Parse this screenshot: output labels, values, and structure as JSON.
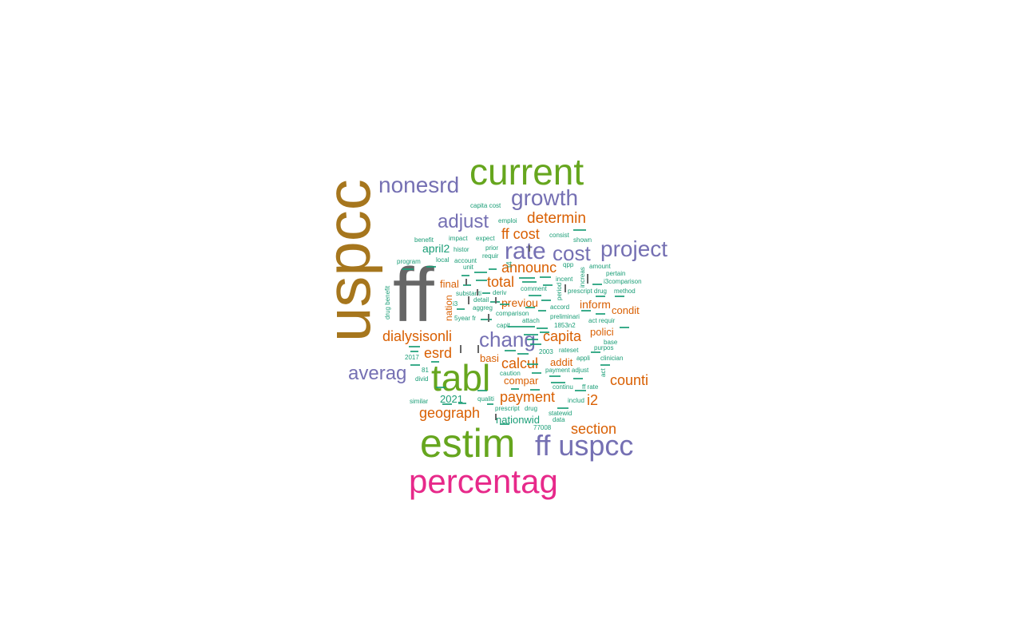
{
  "palette": {
    "brown": "#a6761d",
    "gray": "#666666",
    "green": "#66a61e",
    "purple": "#7570b3",
    "magenta": "#e7298a",
    "orange": "#d95f02",
    "teal": "#1b9e77"
  },
  "words": [
    {
      "text": "uspcc",
      "color": "brown"
    },
    {
      "text": "ff",
      "color": "gray"
    },
    {
      "text": "current",
      "color": "green"
    },
    {
      "text": "tabl",
      "color": "green"
    },
    {
      "text": "estim",
      "color": "green"
    },
    {
      "text": "percentag",
      "color": "magenta"
    },
    {
      "text": "ff uspcc",
      "color": "purple"
    },
    {
      "text": "nonesrd",
      "color": "purple"
    },
    {
      "text": "growth",
      "color": "purple"
    },
    {
      "text": "project",
      "color": "purple"
    },
    {
      "text": "rate",
      "color": "purple"
    },
    {
      "text": "cost",
      "color": "purple"
    },
    {
      "text": "adjust",
      "color": "purple"
    },
    {
      "text": "chang",
      "color": "purple"
    },
    {
      "text": "averag",
      "color": "purple"
    },
    {
      "text": "determin",
      "color": "orange"
    },
    {
      "text": "ff cost",
      "color": "orange"
    },
    {
      "text": "announc",
      "color": "orange"
    },
    {
      "text": "total",
      "color": "orange"
    },
    {
      "text": "capita",
      "color": "orange"
    },
    {
      "text": "dialysisonli",
      "color": "orange"
    },
    {
      "text": "calcul",
      "color": "orange"
    },
    {
      "text": "esrd",
      "color": "orange"
    },
    {
      "text": "counti",
      "color": "orange"
    },
    {
      "text": "payment",
      "color": "orange"
    },
    {
      "text": "geograph",
      "color": "orange"
    },
    {
      "text": "section",
      "color": "orange"
    },
    {
      "text": "i2",
      "color": "orange"
    },
    {
      "text": "previou",
      "color": "orange"
    },
    {
      "text": "inform",
      "color": "orange"
    },
    {
      "text": "condit",
      "color": "orange"
    },
    {
      "text": "polici",
      "color": "orange"
    },
    {
      "text": "final",
      "color": "orange"
    },
    {
      "text": "basi",
      "color": "orange"
    },
    {
      "text": "addit",
      "color": "orange"
    },
    {
      "text": "compar",
      "color": "orange"
    },
    {
      "text": "nation",
      "color": "orange"
    },
    {
      "text": "april2",
      "color": "teal"
    },
    {
      "text": "2021",
      "color": "teal"
    },
    {
      "text": "nationwid",
      "color": "teal"
    },
    {
      "text": "capita cost",
      "color": "teal"
    },
    {
      "text": "emploi",
      "color": "teal"
    },
    {
      "text": "benefit",
      "color": "teal"
    },
    {
      "text": "impact",
      "color": "teal"
    },
    {
      "text": "expect",
      "color": "teal"
    },
    {
      "text": "consist",
      "color": "teal"
    },
    {
      "text": "shown",
      "color": "teal"
    },
    {
      "text": "histor",
      "color": "teal"
    },
    {
      "text": "prior",
      "color": "teal"
    },
    {
      "text": "requir",
      "color": "teal"
    },
    {
      "text": "program",
      "color": "teal"
    },
    {
      "text": "local",
      "color": "teal"
    },
    {
      "text": "account",
      "color": "teal"
    },
    {
      "text": "unit",
      "color": "teal"
    },
    {
      "text": "qpp",
      "color": "teal"
    },
    {
      "text": "amount",
      "color": "teal"
    },
    {
      "text": "pertain",
      "color": "teal"
    },
    {
      "text": "incent",
      "color": "teal"
    },
    {
      "text": "i3comparison",
      "color": "teal"
    },
    {
      "text": "prescript drug",
      "color": "teal"
    },
    {
      "text": "method",
      "color": "teal"
    },
    {
      "text": "comment",
      "color": "teal"
    },
    {
      "text": "detail",
      "color": "teal"
    },
    {
      "text": "substanti",
      "color": "teal"
    },
    {
      "text": "deriv",
      "color": "teal"
    },
    {
      "text": "aggreg",
      "color": "teal"
    },
    {
      "text": "accord",
      "color": "teal"
    },
    {
      "text": "comparison",
      "color": "teal"
    },
    {
      "text": "preliminari",
      "color": "teal"
    },
    {
      "text": "5year fr",
      "color": "teal"
    },
    {
      "text": "attach",
      "color": "teal"
    },
    {
      "text": "act requir",
      "color": "teal"
    },
    {
      "text": "capit",
      "color": "teal"
    },
    {
      "text": "1853n2",
      "color": "teal"
    },
    {
      "text": "base",
      "color": "teal"
    },
    {
      "text": "purpos",
      "color": "teal"
    },
    {
      "text": "2003",
      "color": "teal"
    },
    {
      "text": "rateset",
      "color": "teal"
    },
    {
      "text": "appli",
      "color": "teal"
    },
    {
      "text": "clinician",
      "color": "teal"
    },
    {
      "text": "2017",
      "color": "teal"
    },
    {
      "text": "payment adjust",
      "color": "teal"
    },
    {
      "text": "81",
      "color": "teal"
    },
    {
      "text": "divid",
      "color": "teal"
    },
    {
      "text": "caution",
      "color": "teal"
    },
    {
      "text": "continu",
      "color": "teal"
    },
    {
      "text": "ff rate",
      "color": "teal"
    },
    {
      "text": "similar",
      "color": "teal"
    },
    {
      "text": "qualiti",
      "color": "teal"
    },
    {
      "text": "includ",
      "color": "teal"
    },
    {
      "text": "prescript",
      "color": "teal"
    },
    {
      "text": "drug",
      "color": "teal"
    },
    {
      "text": "statewid",
      "color": "teal"
    },
    {
      "text": "data",
      "color": "teal"
    },
    {
      "text": "77008",
      "color": "teal"
    },
    {
      "text": "drug benefit",
      "color": "teal"
    },
    {
      "text": "increas",
      "color": "teal"
    },
    {
      "text": "period",
      "color": "teal"
    },
    {
      "text": "i3",
      "color": "teal"
    },
    {
      "text": "act",
      "color": "teal"
    },
    {
      "text": "i4",
      "color": "teal"
    }
  ]
}
